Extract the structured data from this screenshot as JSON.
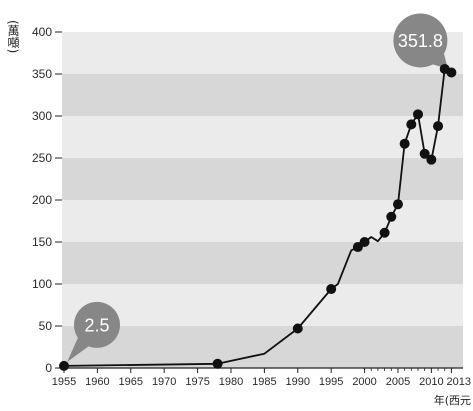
{
  "chart_data": {
    "type": "line",
    "ylabel": "(萬噸)",
    "xlabel": "年(西元",
    "xlim": [
      1955,
      2013
    ],
    "ylim": [
      0,
      400
    ],
    "x_ticks": [
      1955,
      1960,
      1965,
      1970,
      1975,
      1980,
      1985,
      1990,
      1995,
      2000,
      2005,
      2010,
      2013
    ],
    "y_ticks": [
      0,
      50,
      100,
      150,
      200,
      250,
      300,
      350,
      400
    ],
    "grid": true,
    "legend": false,
    "series": [
      {
        "x": [
          1955,
          1978,
          1985,
          1990,
          1995,
          1996,
          1998,
          1999,
          2000,
          2001,
          2002,
          2003,
          2004,
          2005,
          2006,
          2007,
          2008,
          2009,
          2010,
          2011,
          2012,
          2013
        ],
        "y": [
          2.5,
          5,
          17,
          47,
          94,
          100,
          140,
          144,
          150,
          156,
          151,
          161,
          180,
          195,
          267,
          290,
          302,
          255,
          248,
          288,
          356,
          351.8
        ],
        "marked": [
          true,
          true,
          false,
          true,
          true,
          false,
          false,
          true,
          true,
          false,
          false,
          true,
          true,
          true,
          true,
          true,
          true,
          true,
          true,
          true,
          true,
          true
        ]
      }
    ],
    "annotations": [
      {
        "x": 1955,
        "y": 2.5,
        "text": "2.5"
      },
      {
        "x": 2013,
        "y": 351.8,
        "text": "351.8"
      }
    ]
  },
  "colors": {
    "band_dark": "#d7d7d7",
    "band_light": "#ebebeb",
    "line": "#111111",
    "marker": "#111111",
    "axis": "#222222",
    "callout": "#878787",
    "callout_text": "#ffffff"
  }
}
